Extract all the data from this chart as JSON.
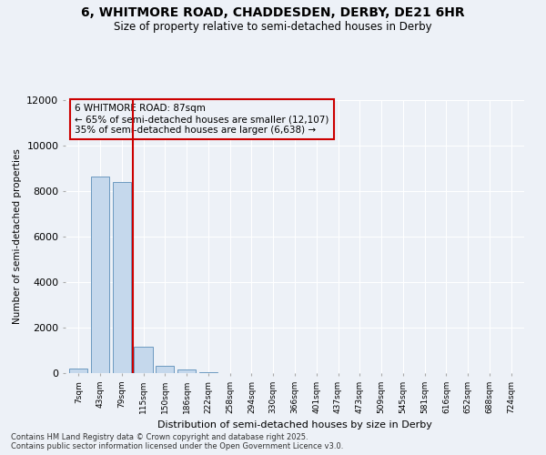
{
  "title_line1": "6, WHITMORE ROAD, CHADDESDEN, DERBY, DE21 6HR",
  "title_line2": "Size of property relative to semi-detached houses in Derby",
  "xlabel": "Distribution of semi-detached houses by size in Derby",
  "ylabel": "Number of semi-detached properties",
  "categories": [
    "7sqm",
    "43sqm",
    "79sqm",
    "115sqm",
    "150sqm",
    "186sqm",
    "222sqm",
    "258sqm",
    "294sqm",
    "330sqm",
    "366sqm",
    "401sqm",
    "437sqm",
    "473sqm",
    "509sqm",
    "545sqm",
    "581sqm",
    "616sqm",
    "652sqm",
    "688sqm",
    "724sqm"
  ],
  "values": [
    200,
    8650,
    8400,
    1150,
    320,
    150,
    50,
    0,
    0,
    0,
    0,
    0,
    0,
    0,
    0,
    0,
    0,
    0,
    0,
    0,
    0
  ],
  "bar_color": "#c5d8ec",
  "bar_edge_color": "#5b8db8",
  "vline_x": 2.5,
  "annotation_title": "6 WHITMORE ROAD: 87sqm",
  "annotation_line2": "← 65% of semi-detached houses are smaller (12,107)",
  "annotation_line3": "35% of semi-detached houses are larger (6,638) →",
  "annotation_box_color": "#cc0000",
  "ylim": [
    0,
    12000
  ],
  "yticks": [
    0,
    2000,
    4000,
    6000,
    8000,
    10000,
    12000
  ],
  "footer_line1": "Contains HM Land Registry data © Crown copyright and database right 2025.",
  "footer_line2": "Contains public sector information licensed under the Open Government Licence v3.0.",
  "bg_color": "#edf1f7",
  "grid_color": "#ffffff"
}
